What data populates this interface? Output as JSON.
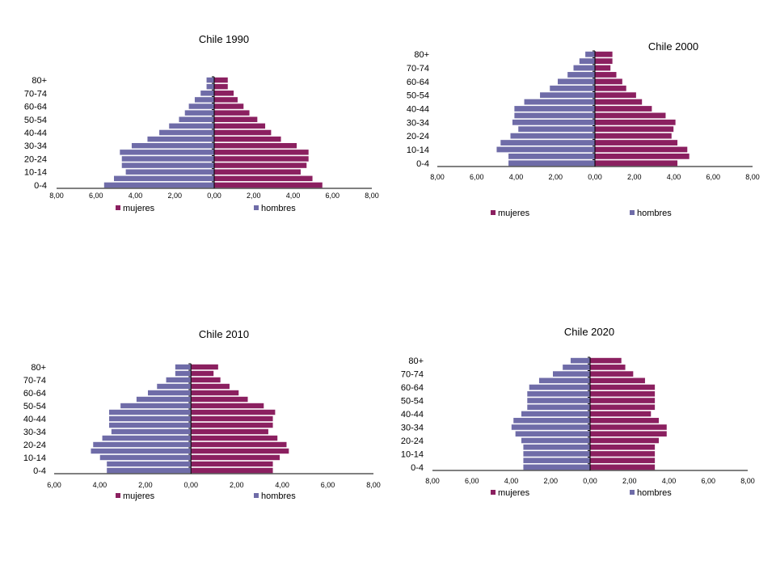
{
  "colors": {
    "mujeres": "#8B2060",
    "hombres": "#6F6CA8",
    "axis": "#000000",
    "text": "#000000"
  },
  "chart_data": [
    {
      "type": "bar",
      "orientation": "horizontal",
      "title": "Chile 1990",
      "categories": [
        "0-4",
        "5-9",
        "10-14",
        "15-19",
        "20-24",
        "25-29",
        "30-34",
        "35-39",
        "40-44",
        "45-49",
        "50-54",
        "55-59",
        "60-64",
        "65-69",
        "70-74",
        "75-79",
        "80+"
      ],
      "category_labels_shown": [
        "0-4",
        "10-14",
        "20-24",
        "30-34",
        "40-44",
        "50-54",
        "60-64",
        "70-74",
        "80+"
      ],
      "series": [
        {
          "name": "mujeres",
          "values": [
            5.5,
            5.0,
            4.4,
            4.7,
            4.8,
            4.8,
            4.2,
            3.4,
            2.9,
            2.6,
            2.2,
            1.8,
            1.5,
            1.2,
            1.0,
            0.7,
            0.7
          ]
        },
        {
          "name": "hombres",
          "values": [
            5.6,
            5.1,
            4.5,
            4.7,
            4.7,
            4.8,
            4.2,
            3.4,
            2.8,
            2.3,
            1.8,
            1.5,
            1.3,
            1.0,
            0.7,
            0.4,
            0.4
          ]
        }
      ],
      "xlim": [
        -8,
        8
      ],
      "x_ticks": [
        "8,00",
        "6,00",
        "4,00",
        "2,00",
        "0,00",
        "2,00",
        "4,00",
        "6,00",
        "8,00"
      ],
      "legend": [
        "mujeres",
        "hombres"
      ],
      "legend_position": "bottom"
    },
    {
      "type": "bar",
      "orientation": "horizontal",
      "title": "Chile 2000",
      "categories": [
        "0-4",
        "5-9",
        "10-14",
        "15-19",
        "20-24",
        "25-29",
        "30-34",
        "35-39",
        "40-44",
        "45-49",
        "50-54",
        "55-59",
        "60-64",
        "65-69",
        "70-74",
        "75-79",
        "80+"
      ],
      "category_labels_shown": [
        "0-4",
        "10-14",
        "20-24",
        "30-34",
        "40-44",
        "50-54",
        "60-64",
        "70-74",
        "80+"
      ],
      "series": [
        {
          "name": "mujeres",
          "values": [
            4.2,
            4.8,
            4.7,
            4.2,
            3.9,
            4.0,
            4.1,
            3.6,
            2.9,
            2.4,
            2.1,
            1.6,
            1.4,
            1.1,
            0.8,
            0.9,
            0.9
          ]
        },
        {
          "name": "hombres",
          "values": [
            4.4,
            4.4,
            5.0,
            4.8,
            4.3,
            3.9,
            4.2,
            4.1,
            4.1,
            3.6,
            2.8,
            2.3,
            1.9,
            1.4,
            1.1,
            0.8,
            0.5
          ]
        }
      ],
      "xlim": [
        -8,
        8
      ],
      "x_ticks": [
        "8,00",
        "6,00",
        "4,00",
        "2,00",
        "0,00",
        "2,00",
        "4,00",
        "6,00",
        "8,00"
      ],
      "legend": [
        "mujeres",
        "hombres"
      ],
      "legend_position": "bottom"
    },
    {
      "type": "bar",
      "orientation": "horizontal",
      "title": "Chile 2010",
      "categories": [
        "0-4",
        "5-9",
        "10-14",
        "15-19",
        "20-24",
        "25-29",
        "30-34",
        "35-39",
        "40-44",
        "45-49",
        "50-54",
        "55-59",
        "60-64",
        "65-69",
        "70-74",
        "75-79",
        "80+"
      ],
      "category_labels_shown": [
        "0-4",
        "10-14",
        "20-24",
        "30-34",
        "40-44",
        "50-54",
        "60-64",
        "70-74",
        "80+"
      ],
      "series": [
        {
          "name": "mujeres",
          "values": [
            3.6,
            3.6,
            3.9,
            4.3,
            4.2,
            3.8,
            3.4,
            3.6,
            3.6,
            3.7,
            3.2,
            2.5,
            2.1,
            1.7,
            1.3,
            1.0,
            1.2
          ]
        },
        {
          "name": "hombres",
          "values": [
            3.7,
            3.7,
            4.0,
            4.4,
            4.3,
            3.9,
            3.5,
            3.6,
            3.6,
            3.6,
            3.1,
            2.4,
            1.9,
            1.5,
            1.1,
            0.7,
            0.7
          ]
        }
      ],
      "xlim": [
        -6,
        8
      ],
      "x_ticks": [
        "6,00",
        "4,00",
        "2,00",
        "0,00",
        "2,00",
        "4,00",
        "6,00",
        "8,00"
      ],
      "legend": [
        "mujeres",
        "hombres"
      ],
      "legend_position": "bottom"
    },
    {
      "type": "bar",
      "orientation": "horizontal",
      "title": "Chile 2020",
      "categories": [
        "0-4",
        "5-9",
        "10-14",
        "15-19",
        "20-24",
        "25-29",
        "30-34",
        "35-39",
        "40-44",
        "45-49",
        "50-54",
        "55-59",
        "60-64",
        "65-69",
        "70-74",
        "75-79",
        "80+"
      ],
      "category_labels_shown": [
        "0-4",
        "10-14",
        "20-24",
        "30-34",
        "40-44",
        "50-54",
        "60-64",
        "70-74",
        "80+"
      ],
      "series": [
        {
          "name": "mujeres",
          "values": [
            3.3,
            3.3,
            3.3,
            3.3,
            3.5,
            3.9,
            3.9,
            3.5,
            3.1,
            3.3,
            3.3,
            3.3,
            3.3,
            2.8,
            2.2,
            1.8,
            1.6
          ]
        },
        {
          "name": "hombres",
          "values": [
            3.4,
            3.4,
            3.4,
            3.4,
            3.5,
            3.8,
            4.0,
            3.9,
            3.5,
            3.2,
            3.2,
            3.2,
            3.1,
            2.6,
            1.9,
            1.4,
            1.0
          ]
        }
      ],
      "xlim": [
        -8,
        8
      ],
      "x_ticks": [
        "8,00",
        "6,00",
        "4,00",
        "2,00",
        "0,00",
        "2,00",
        "4,00",
        "6,00",
        "8,00"
      ],
      "legend": [
        "mujeres",
        "hombres"
      ],
      "legend_position": "bottom"
    }
  ]
}
